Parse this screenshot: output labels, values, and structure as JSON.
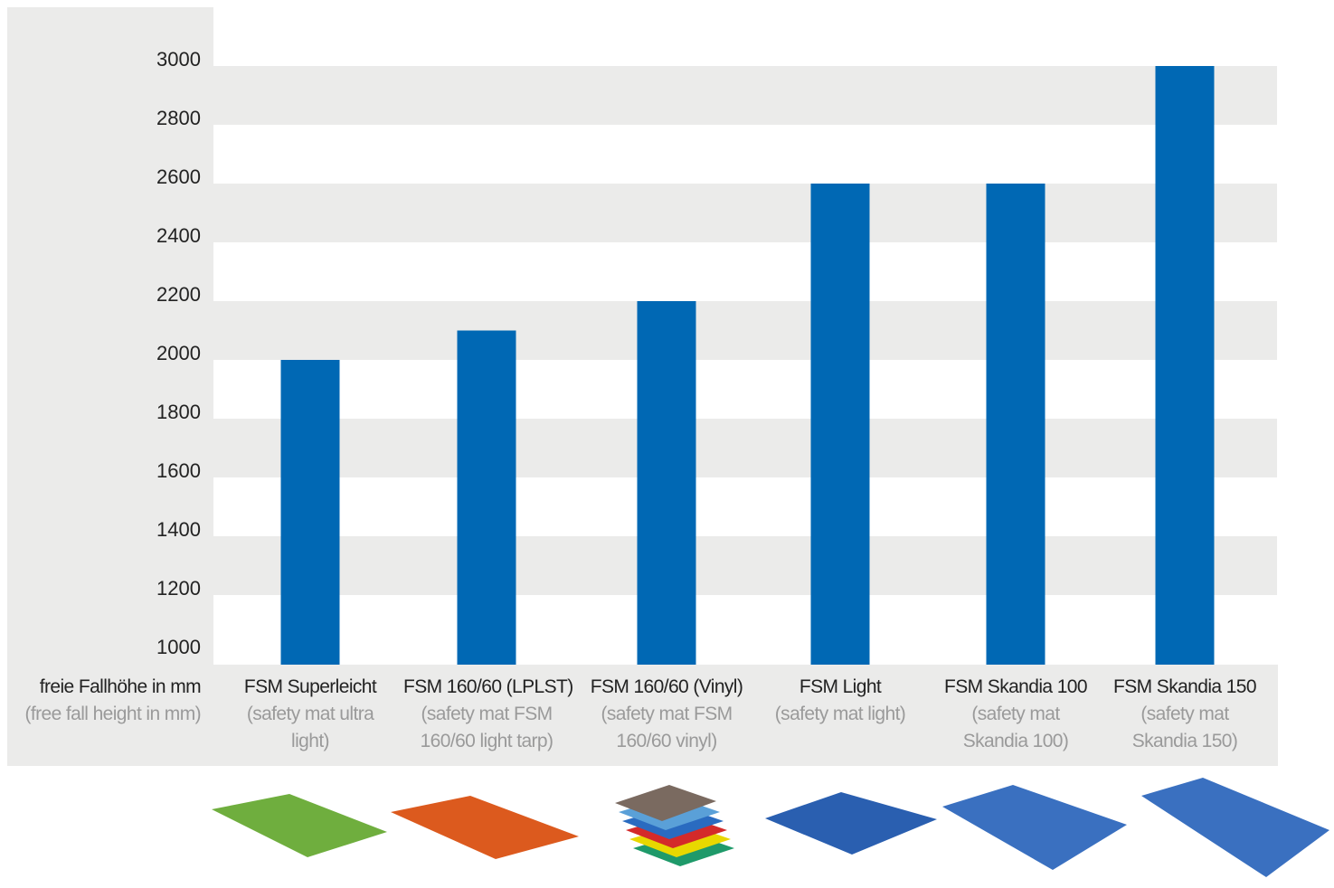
{
  "chart_data": {
    "type": "bar",
    "y_axis_label": "freie Fallhöhe in mm",
    "y_axis_label_note": "(free fall height in mm)",
    "categories": [
      "FSM Superleicht",
      "FSM 160/60 (LPLST)",
      "FSM 160/60 (Vinyl)",
      "FSM Light",
      "FSM Skandia 100",
      "FSM Skandia 150"
    ],
    "category_notes": [
      "(safety mat ultra light)",
      "(safety mat FSM 160/60 light tarp)",
      "(safety mat FSM 160/60 vinyl)",
      "(safety mat light)",
      "(safety mat Skandia 100)",
      "(safety mat Skandia 150)"
    ],
    "values": [
      2000,
      2100,
      2200,
      2600,
      2600,
      3000
    ],
    "color": "#0068b4",
    "ylim": [
      1000,
      3000
    ],
    "yticks": [
      1000,
      1200,
      1400,
      1600,
      1800,
      2000,
      2200,
      2400,
      2600,
      2800,
      3000
    ],
    "grid": true
  }
}
